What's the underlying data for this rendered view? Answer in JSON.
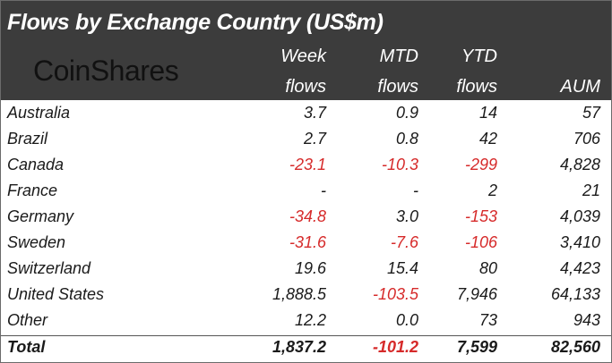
{
  "chart_data": {
    "type": "table",
    "title": "Flows by Exchange Country (US$m)",
    "brand": "CoinShares",
    "columns": [
      {
        "key": "week",
        "line1": "Week",
        "line2": "flows"
      },
      {
        "key": "mtd",
        "line1": "MTD",
        "line2": "flows"
      },
      {
        "key": "ytd",
        "line1": "YTD",
        "line2": "flows"
      },
      {
        "key": "aum",
        "line1": "",
        "line2": "AUM"
      }
    ],
    "rows": [
      {
        "name": "Australia",
        "week": "3.7",
        "mtd": "0.9",
        "ytd": "14",
        "aum": "57"
      },
      {
        "name": "Brazil",
        "week": "2.7",
        "mtd": "0.8",
        "ytd": "42",
        "aum": "706"
      },
      {
        "name": "Canada",
        "week": "-23.1",
        "mtd": "-10.3",
        "ytd": "-299",
        "aum": "4,828"
      },
      {
        "name": "France",
        "week": "-",
        "mtd": "-",
        "ytd": "2",
        "aum": "21"
      },
      {
        "name": "Germany",
        "week": "-34.8",
        "mtd": "3.0",
        "ytd": "-153",
        "aum": "4,039"
      },
      {
        "name": "Sweden",
        "week": "-31.6",
        "mtd": "-7.6",
        "ytd": "-106",
        "aum": "3,410"
      },
      {
        "name": "Switzerland",
        "week": "19.6",
        "mtd": "15.4",
        "ytd": "80",
        "aum": "4,423"
      },
      {
        "name": "United States",
        "week": "1,888.5",
        "mtd": "-103.5",
        "ytd": "7,946",
        "aum": "64,133"
      },
      {
        "name": "Other",
        "week": "12.2",
        "mtd": "0.0",
        "ytd": "73",
        "aum": "943"
      }
    ],
    "total": {
      "name": "Total",
      "week": "1,837.2",
      "mtd": "-101.2",
      "ytd": "7,599",
      "aum": "82,560"
    },
    "colors": {
      "header_bg": "#3c3c3c",
      "header_text": "#ffffff",
      "negative": "#d62a2a",
      "text": "#1a1a1a"
    }
  }
}
